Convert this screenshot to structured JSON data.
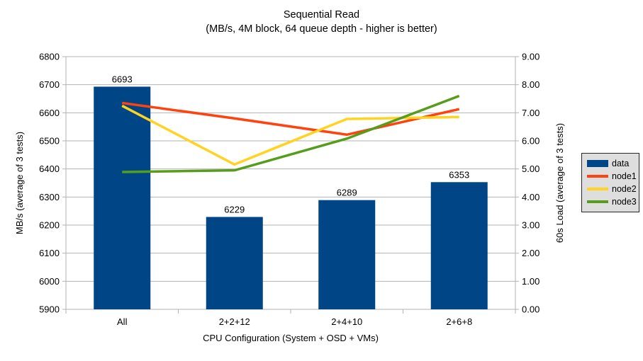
{
  "title": "Sequential Read",
  "subtitle": "(MB/s, 4M block, 64 queue depth - higher is better)",
  "chart_data": {
    "type": "combo-bar-line",
    "categories": [
      "All",
      "2+2+12",
      "2+4+10",
      "2+6+8"
    ],
    "xlabel": "CPU Configuration (System + OSD + VMs)",
    "ylabel_left": "MB/s (average of 3 tests)",
    "ylabel_right": "60s Load (average of 3 tests)",
    "grid": true,
    "gridline_color": "#b3b3b3",
    "background": "#ffffff",
    "legend_position": "right",
    "y_left": {
      "min": 5900,
      "max": 6800,
      "step": 100,
      "tick_labels": [
        "5900",
        "6000",
        "6100",
        "6200",
        "6300",
        "6400",
        "6500",
        "6600",
        "6700",
        "6800"
      ]
    },
    "y_right": {
      "min": 0,
      "max": 9,
      "step": 1,
      "tick_labels": [
        "0.00",
        "1.00",
        "2.00",
        "3.00",
        "4.00",
        "5.00",
        "6.00",
        "7.00",
        "8.00",
        "9.00"
      ]
    },
    "bar_series": {
      "name": "data",
      "color": "#004586",
      "axis": "left",
      "values": [
        6693,
        6229,
        6289,
        6353
      ],
      "labels": [
        "6693",
        "6229",
        "6289",
        "6353"
      ]
    },
    "line_series": [
      {
        "name": "node1",
        "color": "#FF420E",
        "axis": "right",
        "values": [
          7.35,
          6.8,
          6.22,
          7.13
        ]
      },
      {
        "name": "node2",
        "color": "#FFD320",
        "axis": "right",
        "values": [
          7.25,
          5.16,
          6.78,
          6.85
        ]
      },
      {
        "name": "node3",
        "color": "#579D1C",
        "axis": "right",
        "values": [
          4.89,
          4.95,
          6.08,
          7.6
        ]
      }
    ]
  }
}
